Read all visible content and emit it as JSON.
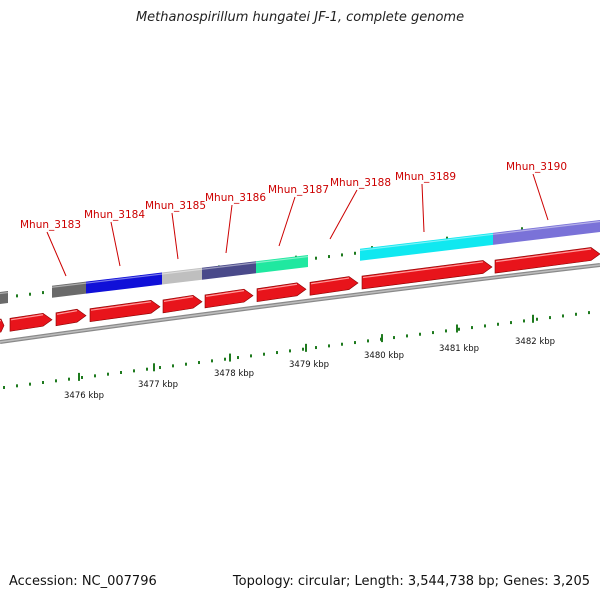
{
  "title": "Methanospirillum hungatei JF-1, complete genome",
  "footer": {
    "accession": "Accession: NC_007796",
    "summary": "Topology: circular; Length: 3,544,738 bp; Genes: 3,205"
  },
  "colors": {
    "gene_label": "#cc0000",
    "cds_red": "#e8141b",
    "tick_green": "#1e7a1e",
    "backbone": "#8a8a8a",
    "blue": "#1010d8",
    "light_gray": "#bfbfbf",
    "dark_gray": "#6a6a6a",
    "slate": "#4a4a8a",
    "teal": "#20e8a0",
    "cyan": "#10e8f0",
    "lavender": "#7a72d8"
  },
  "scale_labels": [
    "3476 kbp",
    "3477 kbp",
    "3478 kbp",
    "3479 kbp",
    "3480 kbp",
    "3481 kbp",
    "3482 kbp"
  ],
  "gene_labels": [
    "Mhun_3183",
    "Mhun_3184",
    "Mhun_3185",
    "Mhun_3186",
    "Mhun_3187",
    "Mhun_3188",
    "Mhun_3189",
    "Mhun_3190"
  ]
}
